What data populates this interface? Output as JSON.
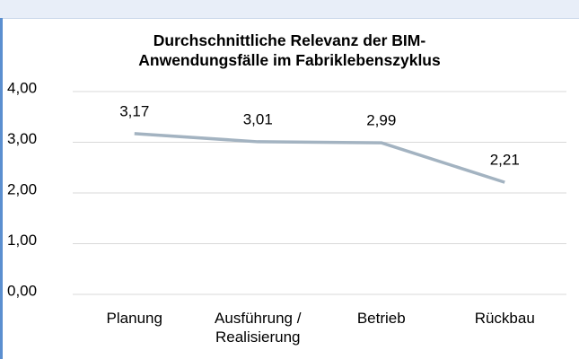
{
  "chart_data": {
    "type": "line",
    "title": "Durchschnittliche Relevanz der BIM-Anwendungsfälle im Fabriklebenszyklus",
    "categories": [
      "Planung",
      "Ausführung / Realisierung",
      "Betrieb",
      "Rückbau"
    ],
    "series": [
      {
        "color": "#a3b3c1",
        "values": [
          3.17,
          3.01,
          2.99,
          2.21
        ],
        "value_labels": [
          "3,17",
          "3,01",
          "2,99",
          "2,21"
        ]
      }
    ],
    "ylim": [
      0,
      4
    ],
    "yticks": [
      {
        "value": 0,
        "label": "0,00"
      },
      {
        "value": 1,
        "label": "1,00"
      },
      {
        "value": 2,
        "label": "2,00"
      },
      {
        "value": 3,
        "label": "3,00"
      },
      {
        "value": 4,
        "label": "4,00"
      }
    ],
    "grid": true
  }
}
